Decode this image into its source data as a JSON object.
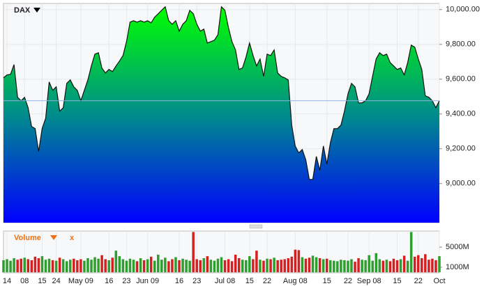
{
  "chart_data": [
    {
      "type": "area",
      "title": "DAX",
      "values": [
        9608,
        9624,
        9628,
        9684,
        9496,
        9476,
        9496,
        9436,
        9328,
        9316,
        9184,
        9316,
        9376,
        9584,
        9536,
        9556,
        9416,
        9436,
        9576,
        9596,
        9556,
        9536,
        9476,
        9536,
        9596,
        9676,
        9744,
        9752,
        9664,
        9636,
        9656,
        9644,
        9676,
        9704,
        9736,
        9816,
        9928,
        9936,
        9928,
        9936,
        9928,
        9936,
        9924,
        9956,
        9976,
        9996,
        10016,
        9936,
        9916,
        9936,
        9876,
        9916,
        9936,
        9996,
        9976,
        9916,
        9876,
        9888,
        9808,
        9816,
        9824,
        9856,
        10016,
        9996,
        9896,
        9816,
        9768,
        9656,
        9664,
        9728,
        9808,
        9736,
        9676,
        9716,
        9616,
        9744,
        9736,
        9768,
        9636,
        9616,
        9608,
        9596,
        9336,
        9216,
        9176,
        9196,
        9136,
        9024,
        9024,
        9156,
        9076,
        9216,
        9112,
        9236,
        9316,
        9316,
        9336,
        9416,
        9516,
        9576,
        9556,
        9464,
        9464,
        9476,
        9516,
        9616,
        9716,
        9752,
        9736,
        9744,
        9696,
        9676,
        9656,
        9664,
        9624,
        9696,
        9796,
        9784,
        9716,
        9656,
        9504,
        9496,
        9476,
        9436,
        9476
      ],
      "xlim": [
        0,
        124
      ],
      "xticks": [
        {
          "value": 1,
          "label": "14"
        },
        {
          "value": 6,
          "label": "08"
        },
        {
          "value": 11,
          "label": "15"
        },
        {
          "value": 15,
          "label": "24"
        },
        {
          "value": 22,
          "label": "May 09"
        },
        {
          "value": 30,
          "label": "16"
        },
        {
          "value": 35,
          "label": "23"
        },
        {
          "value": 41,
          "label": "Jun 09"
        },
        {
          "value": 50,
          "label": "16"
        },
        {
          "value": 55,
          "label": "23"
        },
        {
          "value": 63,
          "label": "Jul 08"
        },
        {
          "value": 70,
          "label": "15"
        },
        {
          "value": 75,
          "label": "22"
        },
        {
          "value": 83,
          "label": "Aug 08"
        },
        {
          "value": 92,
          "label": "15"
        },
        {
          "value": 98,
          "label": "22"
        },
        {
          "value": 104,
          "label": "Sep 08"
        },
        {
          "value": 112,
          "label": "15"
        },
        {
          "value": 118,
          "label": "22"
        },
        {
          "value": 124,
          "label": "Oct"
        }
      ],
      "ylim": [
        8775,
        10035
      ],
      "yticks": [
        {
          "value": 9000,
          "label": "9,000.00"
        },
        {
          "value": 9200,
          "label": "9,200.00"
        },
        {
          "value": 9400,
          "label": "9,400.00"
        },
        {
          "value": 9600,
          "label": "9,600.00"
        },
        {
          "value": 9800,
          "label": "9,800.00"
        },
        {
          "value": 10000,
          "label": "10,000.00"
        }
      ],
      "colors": [
        "#00ff00",
        "#008c8c",
        "#0000ff"
      ]
    },
    {
      "type": "bar",
      "title": "Volume",
      "close_label": "x",
      "values": [
        2400,
        2600,
        2300,
        2800,
        2500,
        2700,
        2900,
        2600,
        2400,
        3100,
        2800,
        3200,
        2500,
        2700,
        2400,
        2300,
        2900,
        2600,
        2200,
        2500,
        2700,
        2400,
        2600,
        2300,
        2800,
        2500,
        3000,
        2700,
        3400,
        2600,
        2400,
        2900,
        4300,
        3200,
        2600,
        2300,
        2700,
        2500,
        2200,
        2800,
        2400,
        2600,
        3100,
        2300,
        3500,
        2500,
        2900,
        2200,
        2600,
        3000,
        2400,
        2700,
        2500,
        2300,
        8000,
        2600,
        2400,
        2800,
        3200,
        2500,
        2300,
        2700,
        3000,
        2400,
        2600,
        2200,
        3500,
        2800,
        2500,
        2400,
        3200,
        2600,
        4300,
        2500,
        2300,
        2700,
        2600,
        2900,
        2400,
        2500,
        2600,
        2800,
        3100,
        4500,
        4400,
        3000,
        2700,
        2900,
        3300,
        3000,
        2800,
        2600,
        2700,
        2400,
        2300,
        2200,
        2500,
        2400,
        2300,
        2600,
        2100,
        2800,
        2500,
        2400,
        3400,
        2300,
        3800,
        2600,
        2300,
        2500,
        2200,
        2700,
        2400,
        2600,
        3300,
        2300,
        8000,
        3100,
        3400,
        2800,
        3600,
        2500,
        2700,
        2400,
        3200
      ],
      "ylim": [
        -100,
        8200
      ],
      "yticks": [
        {
          "value": 1000,
          "label": "1000M"
        },
        {
          "value": 5000,
          "label": "5000M"
        }
      ],
      "colors": [
        "#2e9e2e",
        "#d42020"
      ]
    }
  ]
}
